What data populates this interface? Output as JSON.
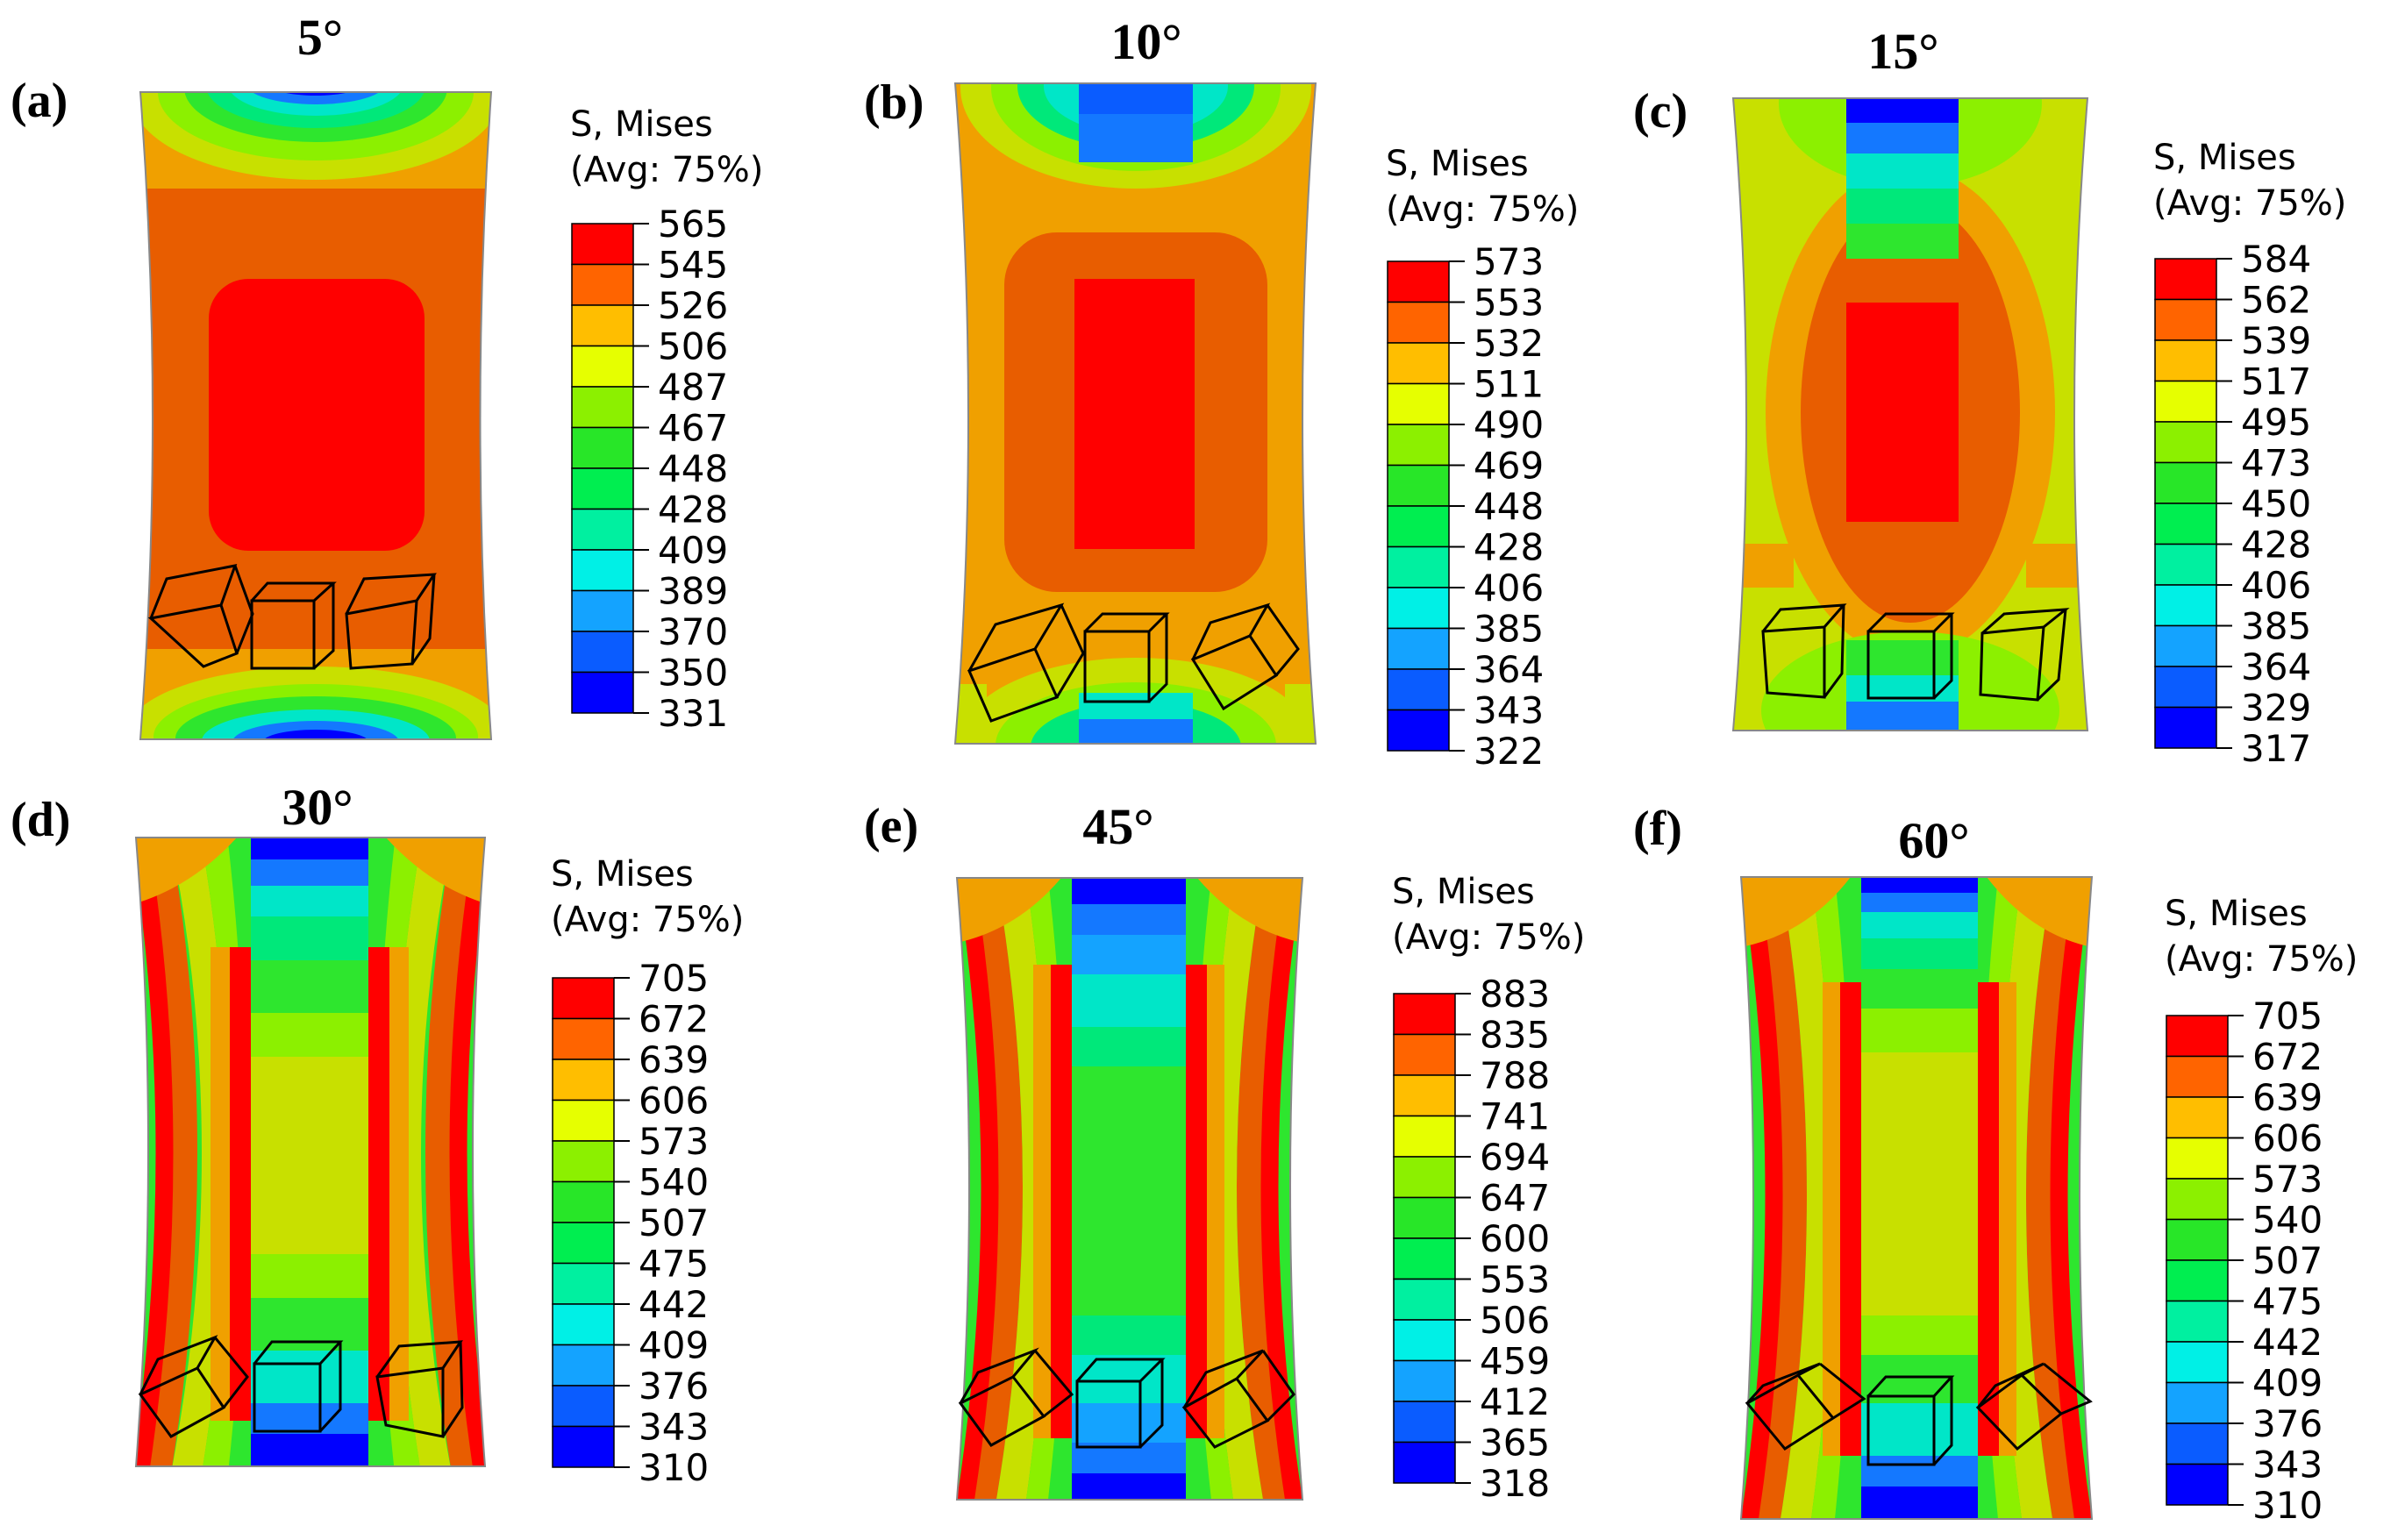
{
  "colormap": [
    "#0000ff",
    "#0a5cff",
    "#14a3ff",
    "#00f0e6",
    "#00f0a0",
    "#00ee50",
    "#28e628",
    "#8cf000",
    "#e6ff00",
    "#ffbe00",
    "#ff6400",
    "#ff0000"
  ],
  "contour_colors": {
    "red": "#ff0000",
    "orange_red": "#e85d00",
    "orange": "#f0a000",
    "yellow": "#c8e000",
    "lime": "#8cf000",
    "green": "#2ee62e",
    "green_teal": "#00e87a",
    "teal": "#00e6c8",
    "cyan": "#00c8f0",
    "blue": "#1478ff",
    "dark_blue": "#0000ff"
  },
  "panels": [
    {
      "label": "(a)",
      "angle": "5°",
      "legend_title_1": "S, Mises",
      "legend_title_2": "(Avg: 75%)",
      "legend_values": [
        "565",
        "545",
        "526",
        "506",
        "487",
        "467",
        "448",
        "428",
        "409",
        "389",
        "370",
        "350",
        "331"
      ]
    },
    {
      "label": "(b)",
      "angle": "10°",
      "legend_title_1": "S, Mises",
      "legend_title_2": "(Avg: 75%)",
      "legend_values": [
        "573",
        "553",
        "532",
        "511",
        "490",
        "469",
        "448",
        "428",
        "406",
        "385",
        "364",
        "343",
        "322"
      ]
    },
    {
      "label": "(c)",
      "angle": "15°",
      "legend_title_1": "S, Mises",
      "legend_title_2": "(Avg: 75%)",
      "legend_values": [
        "584",
        "562",
        "539",
        "517",
        "495",
        "473",
        "450",
        "428",
        "406",
        "385",
        "364",
        "329",
        "317"
      ]
    },
    {
      "label": "(d)",
      "angle": "30°",
      "legend_title_1": "S, Mises",
      "legend_title_2": "(Avg: 75%)",
      "legend_values": [
        "705",
        "672",
        "639",
        "606",
        "573",
        "540",
        "507",
        "475",
        "442",
        "409",
        "376",
        "343",
        "310"
      ]
    },
    {
      "label": "(e)",
      "angle": "45°",
      "legend_title_1": "S, Mises",
      "legend_title_2": "(Avg: 75%)",
      "legend_values": [
        "883",
        "835",
        "788",
        "741",
        "694",
        "647",
        "600",
        "553",
        "506",
        "459",
        "412",
        "365",
        "318"
      ]
    },
    {
      "label": "(f)",
      "angle": "60°",
      "legend_title_1": "S, Mises",
      "legend_title_2": "(Avg: 75%)",
      "legend_values": [
        "705",
        "672",
        "639",
        "606",
        "573",
        "540",
        "507",
        "475",
        "442",
        "409",
        "376",
        "343",
        "310"
      ]
    }
  ]
}
